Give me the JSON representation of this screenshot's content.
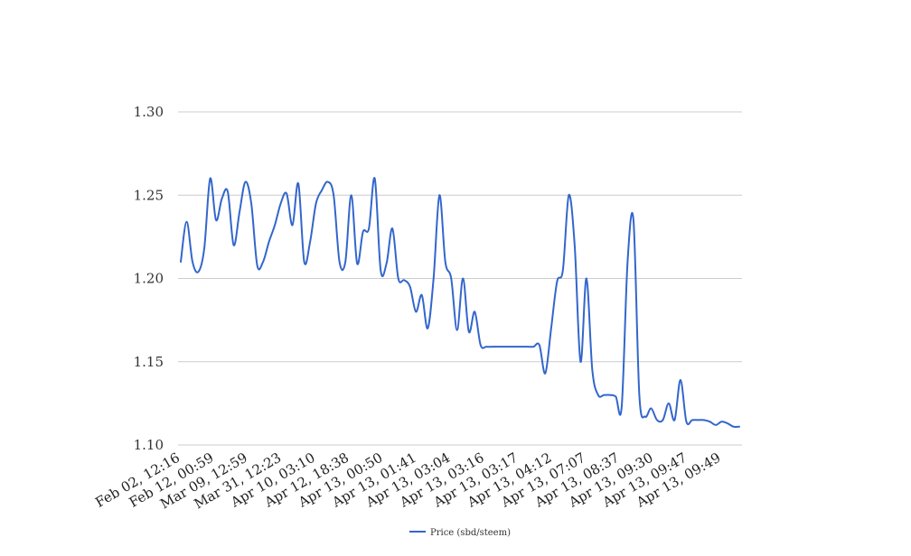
{
  "chart_data": {
    "type": "line",
    "title": "",
    "xlabel": "",
    "ylabel": "",
    "ylim": [
      1.1,
      1.3
    ],
    "y_ticks": [
      "1.10",
      "1.15",
      "1.20",
      "1.25",
      "1.30"
    ],
    "grid": true,
    "legend_position": "bottom-center",
    "x_tick_labels": [
      "Feb 02, 12:16",
      "Feb 12, 00:59",
      "Mar 09, 12:59",
      "Mar 31, 12:23",
      "Apr 10, 03:10",
      "Apr 12, 18:38",
      "Apr 13, 00:50",
      "Apr 13, 01:41",
      "Apr 13, 03:04",
      "Apr 13, 03:16",
      "Apr 13, 03:17",
      "Apr 13, 04:12",
      "Apr 13, 07:07",
      "Apr 13, 08:37",
      "Apr 13, 09:30",
      "Apr 13, 09:47",
      "Apr 13, 09:49"
    ],
    "series": [
      {
        "name": "Price (sbd/steem)",
        "color": "#3366cc",
        "values": [
          1.21,
          1.234,
          1.21,
          1.204,
          1.218,
          1.26,
          1.235,
          1.248,
          1.252,
          1.22,
          1.24,
          1.258,
          1.245,
          1.208,
          1.21,
          1.222,
          1.232,
          1.245,
          1.251,
          1.232,
          1.257,
          1.21,
          1.222,
          1.245,
          1.253,
          1.258,
          1.25,
          1.21,
          1.21,
          1.25,
          1.209,
          1.228,
          1.23,
          1.26,
          1.205,
          1.209,
          1.23,
          1.2,
          1.199,
          1.195,
          1.18,
          1.19,
          1.17,
          1.2,
          1.25,
          1.21,
          1.2,
          1.169,
          1.2,
          1.168,
          1.18,
          1.16,
          1.159,
          1.159,
          1.159,
          1.159,
          1.159,
          1.159,
          1.159,
          1.159,
          1.159,
          1.16,
          1.143,
          1.17,
          1.198,
          1.205,
          1.25,
          1.22,
          1.15,
          1.2,
          1.145,
          1.13,
          1.13,
          1.13,
          1.129,
          1.123,
          1.21,
          1.235,
          1.13,
          1.117,
          1.122,
          1.115,
          1.115,
          1.125,
          1.115,
          1.139,
          1.114,
          1.115,
          1.115,
          1.115,
          1.114,
          1.112,
          1.114,
          1.113,
          1.111,
          1.111
        ]
      }
    ]
  }
}
